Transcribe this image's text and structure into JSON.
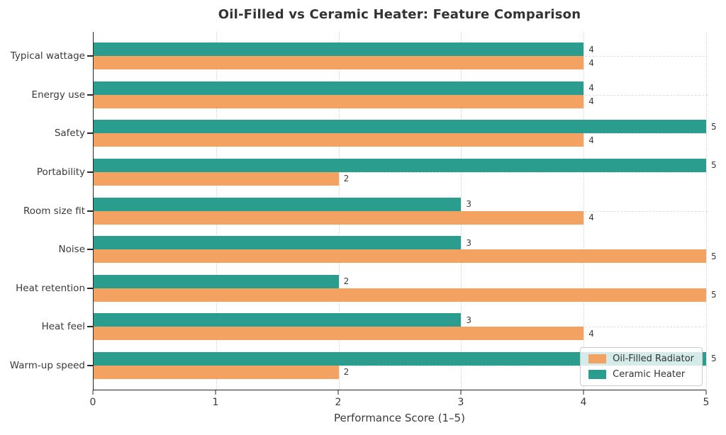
{
  "chart_data": {
    "type": "bar",
    "orientation": "horizontal",
    "title": "Oil-Filled vs Ceramic Heater: Feature Comparison",
    "xlabel": "Performance Score (1–5)",
    "xlim": [
      0,
      5
    ],
    "xticks": [
      0,
      1,
      2,
      3,
      4,
      5
    ],
    "grid": true,
    "legend_position": "lower right",
    "bar_value_labels": true,
    "categories": [
      "Typical wattage",
      "Energy use",
      "Safety",
      "Portability",
      "Room size fit",
      "Noise",
      "Heat retention",
      "Heat feel",
      "Warm-up speed"
    ],
    "series": [
      {
        "name": "Ceramic Heater",
        "color": "#2a9d8f",
        "values": [
          4,
          4,
          5,
          5,
          3,
          3,
          2,
          3,
          5
        ]
      },
      {
        "name": "Oil-Filled Radiator",
        "color": "#f4a261",
        "values": [
          4,
          4,
          4,
          2,
          4,
          5,
          5,
          4,
          2
        ]
      }
    ],
    "legend_order": [
      "Oil-Filled Radiator",
      "Ceramic Heater"
    ],
    "colors": {
      "axis": "#262626",
      "text": "#3a3a3a",
      "title": "#333333",
      "gridline": "#d8d8d8",
      "background": "#ffffff"
    }
  }
}
